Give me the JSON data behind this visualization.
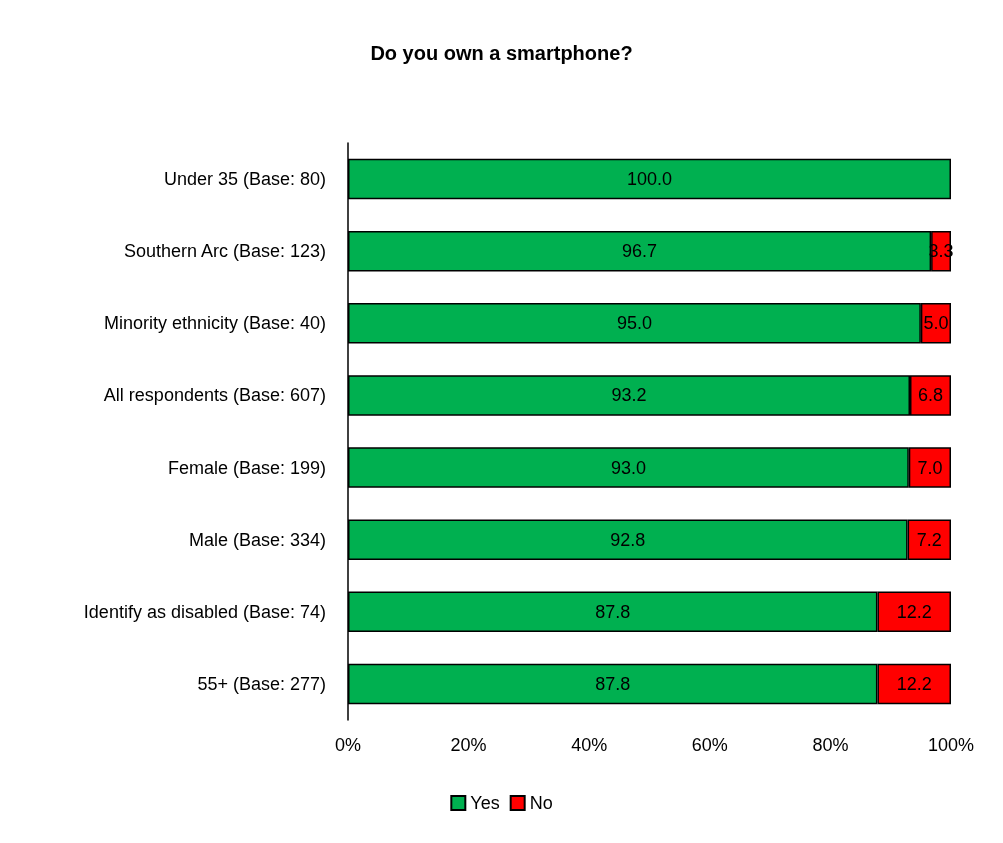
{
  "chart_data": {
    "type": "bar",
    "title": "Do you own a smartphone?",
    "orientation": "horizontal",
    "stacked": true,
    "categories": [
      "Under 35 (Base: 80)",
      "Southern Arc (Base: 123)",
      "Minority ethnicity (Base: 40)",
      "All respondents (Base: 607)",
      "Female (Base: 199)",
      "Male (Base: 334)",
      "Identify as disabled (Base: 74)",
      "55+ (Base: 277)"
    ],
    "series": [
      {
        "name": "Yes",
        "color": "#00b050",
        "values": [
          100.0,
          96.7,
          95.0,
          93.2,
          93.0,
          92.8,
          87.8,
          87.8
        ],
        "value_labels": [
          "100.0",
          "96.7",
          "95.0",
          "93.2",
          "93.0",
          "92.8",
          "87.8",
          "87.8"
        ]
      },
      {
        "name": "No",
        "color": "#ff0000",
        "values": [
          0,
          3.3,
          5.0,
          6.8,
          7.0,
          7.2,
          12.2,
          12.2
        ],
        "value_labels": [
          null,
          "3.3",
          "5.0",
          "6.8",
          "7.0",
          "7.2",
          "12.2",
          "12.2"
        ]
      }
    ],
    "xlim": [
      0,
      100
    ],
    "xticks": [
      {
        "value": 0,
        "label": "0%"
      },
      {
        "value": 20,
        "label": "20%"
      },
      {
        "value": 40,
        "label": "40%"
      },
      {
        "value": 60,
        "label": "60%"
      },
      {
        "value": 80,
        "label": "80%"
      },
      {
        "value": 100,
        "label": "100%"
      }
    ],
    "grid": false,
    "legend": "bottom"
  }
}
